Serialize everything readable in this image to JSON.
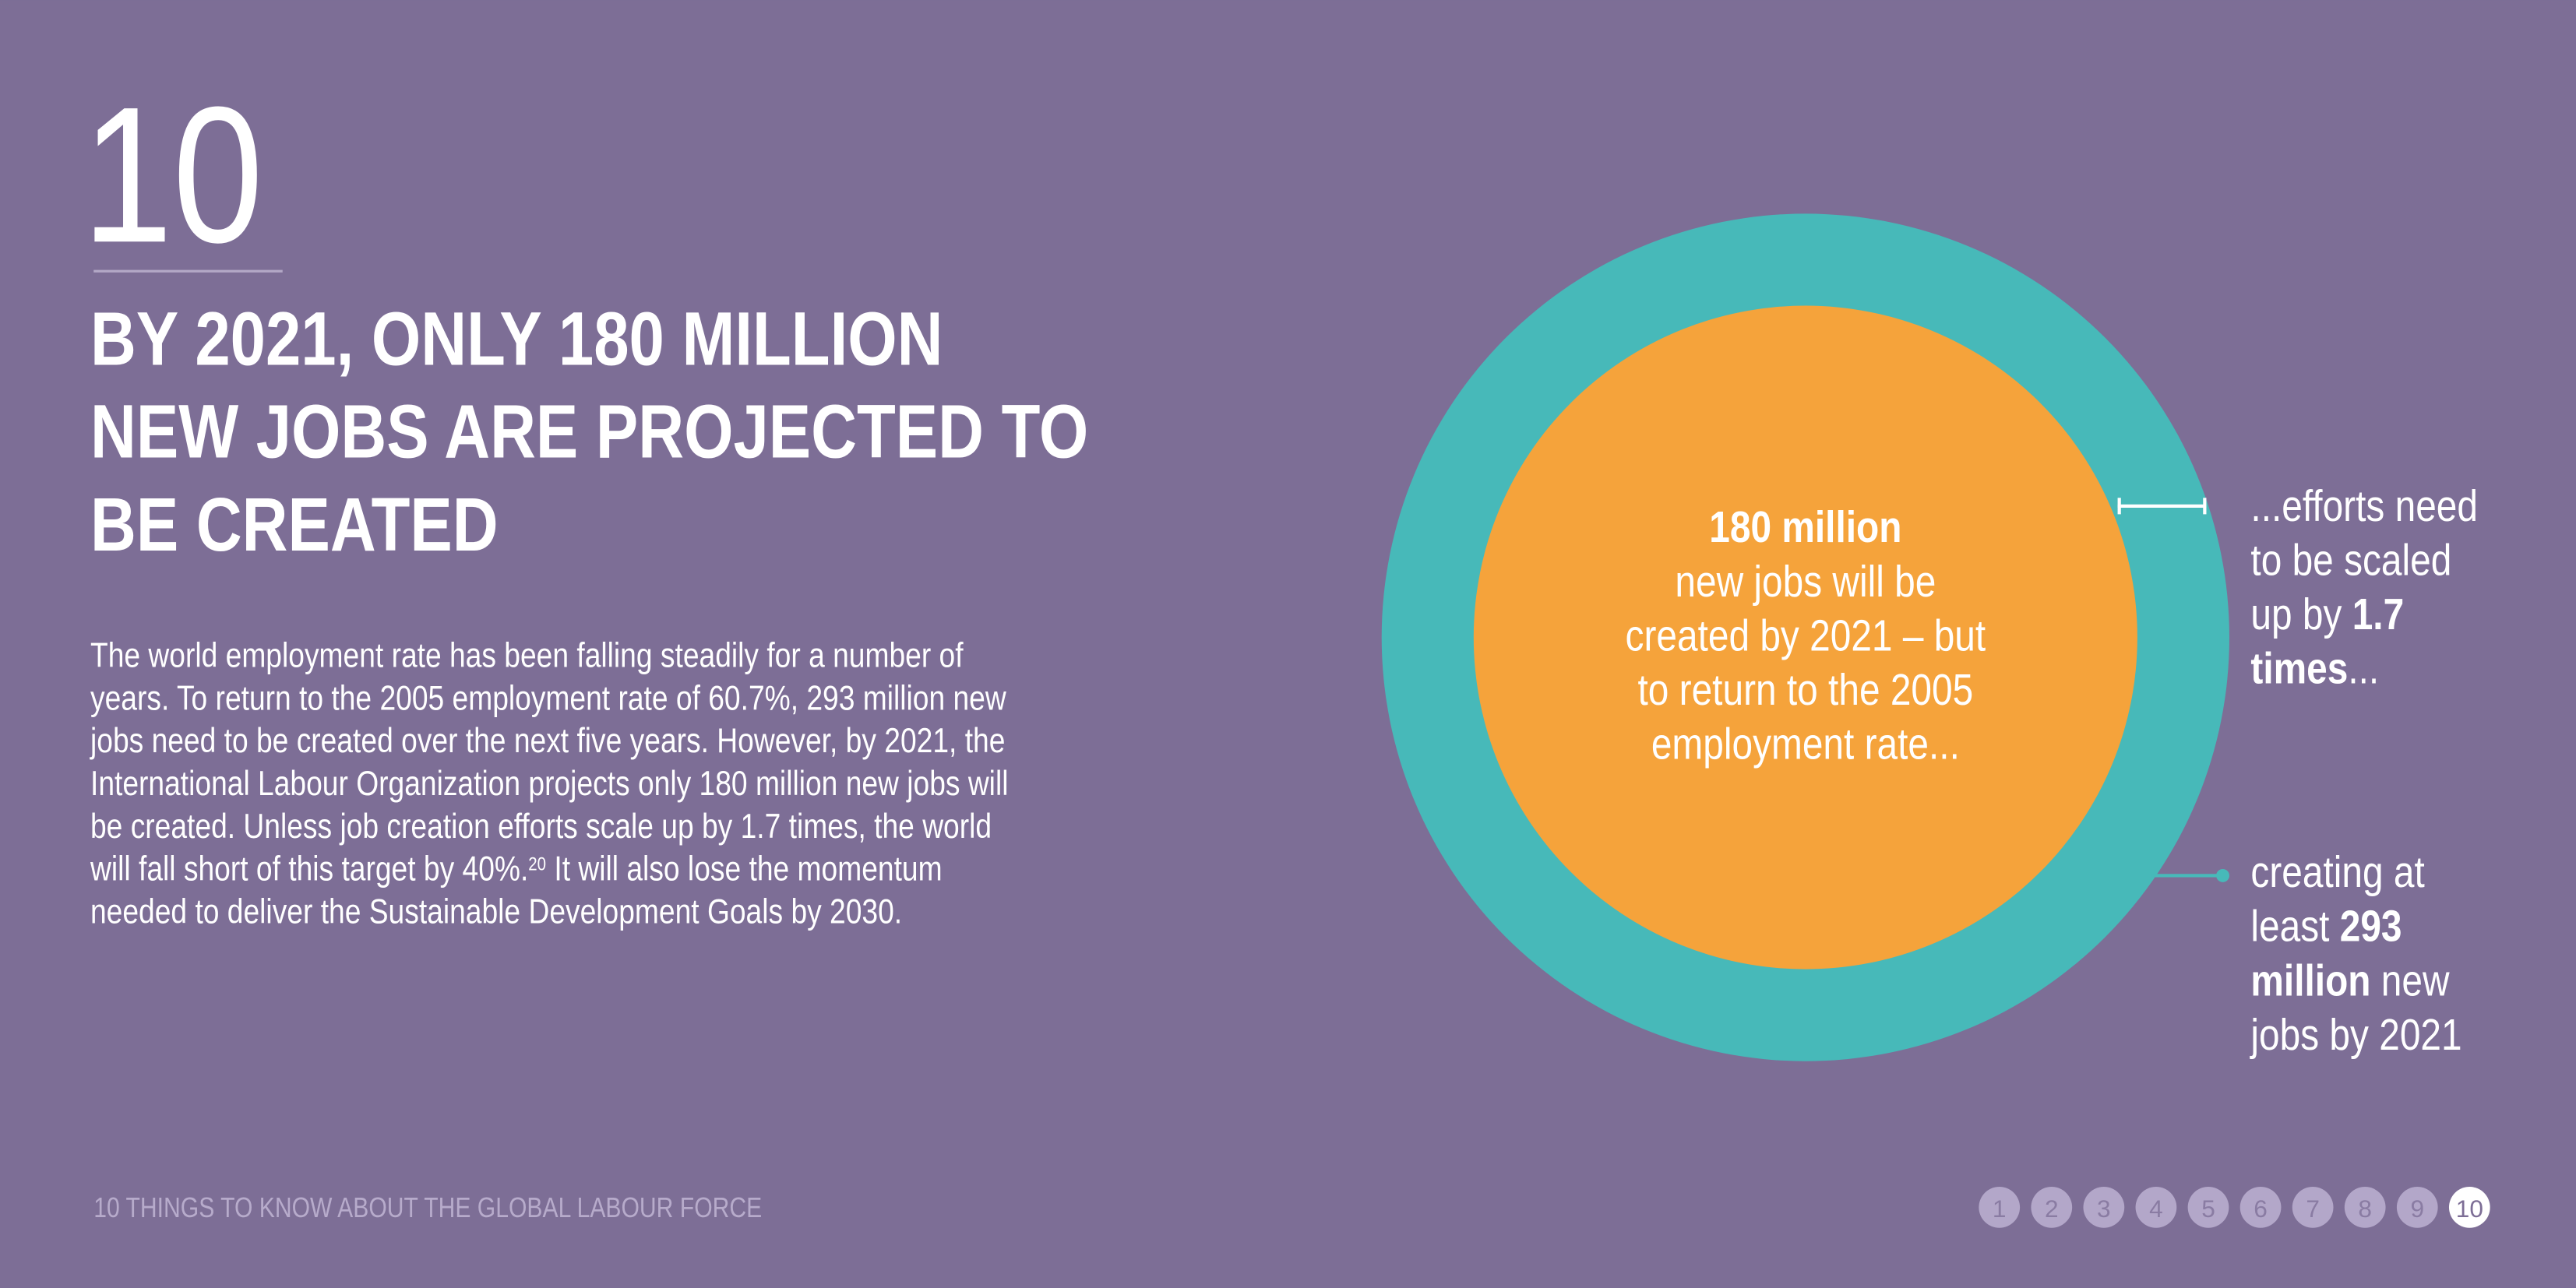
{
  "number": "10",
  "title": [
    "BY 2021, ONLY 180 MILLION",
    "NEW JOBS ARE PROJECTED TO",
    "BE CREATED"
  ],
  "paragraph": [
    [
      {
        "text": "The world employment rate has been falling steadily for a number of"
      }
    ],
    [
      {
        "text": "years. To return to the 2005 employment rate of 60.7%, 293 million new"
      }
    ],
    [
      {
        "text": "jobs need to be created over the next five years. However, by 2021, the"
      }
    ],
    [
      {
        "text": "International Labour Organization projects only 180 million new jobs will"
      }
    ],
    [
      {
        "text": "be created. Unless job creation efforts scale up by 1.7 times, the world"
      }
    ],
    [
      {
        "text": "will fall short of this target by 40%."
      },
      {
        "text": "20",
        "sup": true
      },
      {
        "text": " It will also lose the momentum"
      }
    ],
    [
      {
        "text": "needed to deliver the Sustainable Development Goals by 2030."
      }
    ]
  ],
  "center_text": [
    [
      {
        "text": "180 million",
        "bold": true
      }
    ],
    [
      {
        "text": "new jobs will be"
      }
    ],
    [
      {
        "text": "created by 2021 – but"
      }
    ],
    [
      {
        "text": "to return to the 2005"
      }
    ],
    [
      {
        "text": "employment rate..."
      }
    ]
  ],
  "callouts": [
    {
      "lines": [
        [
          {
            "text": "...efforts need"
          }
        ],
        [
          {
            "text": "to be scaled"
          }
        ],
        [
          {
            "text": "up by "
          },
          {
            "text": "1.7",
            "bold": true
          }
        ],
        [
          {
            "text": "times",
            "bold": true
          },
          {
            "text": "..."
          }
        ]
      ]
    },
    {
      "lines": [
        [
          {
            "text": "creating at"
          }
        ],
        [
          {
            "text": "least "
          },
          {
            "text": "293",
            "bold": true
          }
        ],
        [
          {
            "text": "million",
            "bold": true
          },
          {
            "text": " new"
          }
        ],
        [
          {
            "text": "jobs by 2021"
          }
        ]
      ]
    }
  ],
  "footer": "10 THINGS TO KNOW ABOUT THE GLOBAL LABOUR FORCE",
  "pages": [
    "1",
    "2",
    "3",
    "4",
    "5",
    "6",
    "7",
    "8",
    "9",
    "10"
  ]
}
